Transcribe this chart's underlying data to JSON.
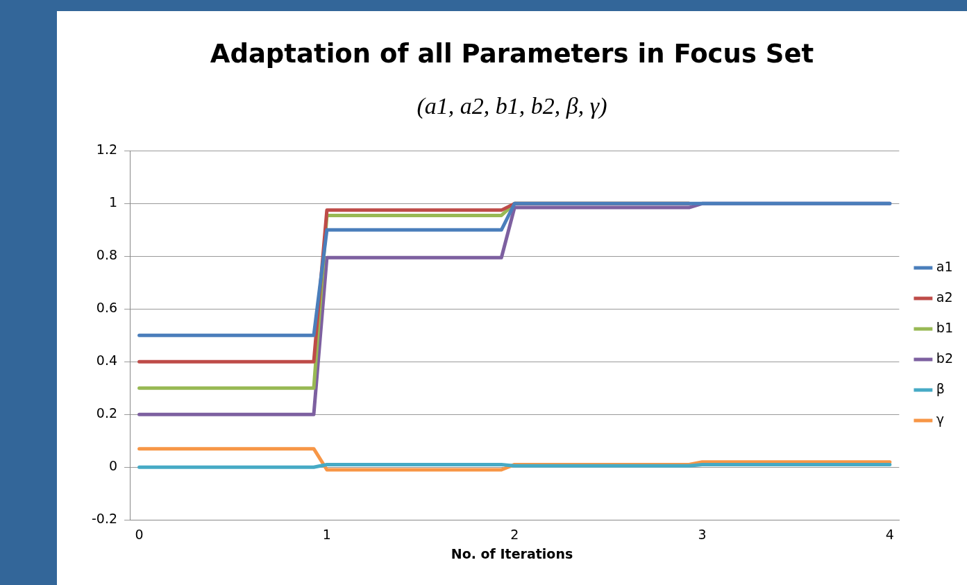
{
  "chart_data": {
    "type": "line",
    "title": "Adaptation of all Parameters in Focus Set",
    "subtitle": "(a1, a2, b1, b2, β, γ)",
    "xlabel": "No. of Iterations",
    "x": [
      0,
      0.93,
      1,
      1.93,
      2,
      2.93,
      3,
      4
    ],
    "series": [
      {
        "name": "a1",
        "color": "#4a7ebb",
        "values": [
          0.5,
          0.5,
          0.9,
          0.9,
          1,
          1,
          1,
          1
        ]
      },
      {
        "name": "a2",
        "color": "#be4b48",
        "values": [
          0.4,
          0.4,
          0.975,
          0.975,
          1,
          1,
          null,
          null
        ]
      },
      {
        "name": "b1",
        "color": "#98b954",
        "values": [
          0.3,
          0.3,
          0.955,
          0.955,
          1,
          1,
          null,
          null
        ]
      },
      {
        "name": "b2",
        "color": "#7d60a0",
        "values": [
          0.2,
          0.2,
          0.795,
          0.795,
          0.985,
          0.985,
          1,
          1
        ]
      },
      {
        "name": "β",
        "color": "#46aac5",
        "values": [
          0,
          0,
          0.01,
          0.01,
          0.005,
          0.005,
          0.01,
          0.01
        ]
      },
      {
        "name": "γ",
        "color": "#f79646",
        "values": [
          0.07,
          0.07,
          -0.01,
          -0.01,
          0.01,
          0.01,
          0.02,
          0.02
        ]
      }
    ],
    "xlim": [
      -0.05,
      4.05
    ],
    "xticks": [
      0,
      1,
      2,
      3,
      4
    ],
    "ylim": [
      -0.2,
      1.2
    ],
    "yticks": [
      -0.2,
      0,
      0.2,
      0.4,
      0.6,
      0.8,
      1,
      1.2
    ],
    "grid": "y",
    "legend": "right",
    "marker": "none",
    "line_style": "solid"
  }
}
